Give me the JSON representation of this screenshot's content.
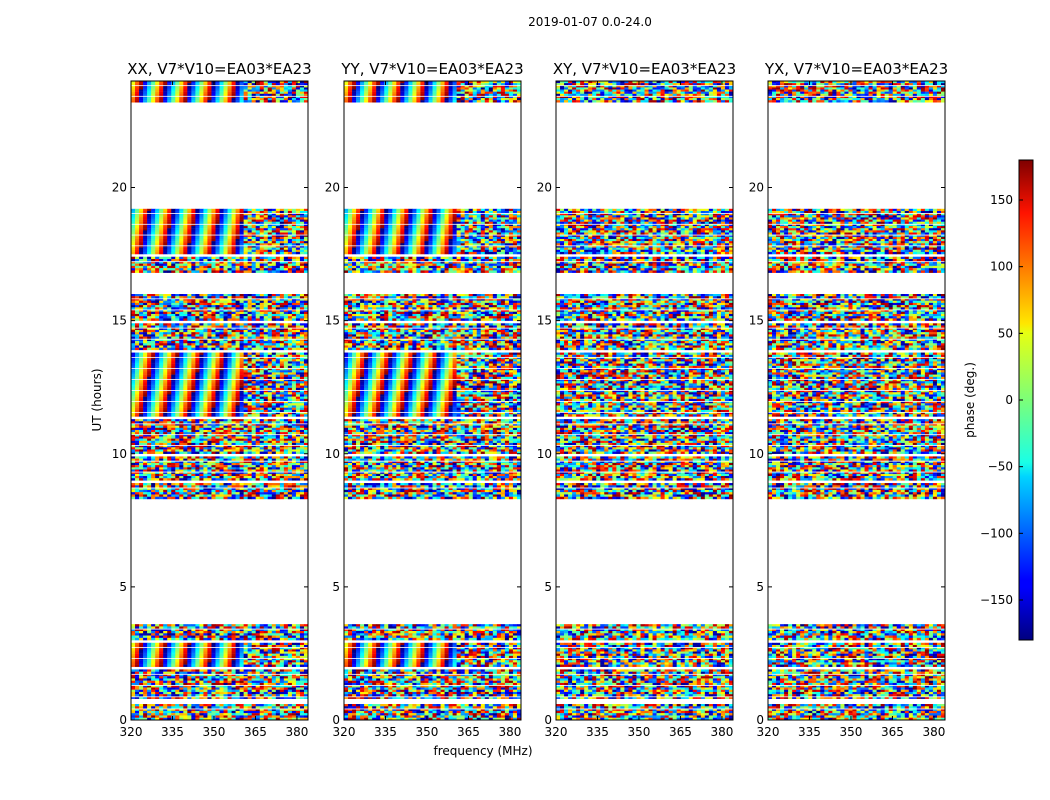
{
  "chart_data": {
    "type": "heatmap",
    "suptitle": "2019-01-07 0.0-24.0",
    "xlabel": "frequency (MHz)",
    "ylabel": "UT (hours)",
    "xlim": [
      320,
      384
    ],
    "ylim": [
      0,
      24
    ],
    "xticks": [
      "320",
      "335",
      "350",
      "365",
      "380"
    ],
    "xtick_values": [
      320,
      335,
      350,
      365,
      380
    ],
    "yticks": [
      "0",
      "5",
      "10",
      "15",
      "20"
    ],
    "ytick_values": [
      0,
      5,
      10,
      15,
      20
    ],
    "colorbar": {
      "label": "phase (deg.)",
      "range": [
        -180,
        180
      ],
      "tick_labels": [
        "150",
        "100",
        "50",
        "0",
        "−50",
        "−100",
        "−150"
      ],
      "tick_values": [
        150,
        100,
        50,
        0,
        -50,
        -100,
        -150
      ],
      "colormap": "jet"
    },
    "panels": [
      {
        "title": "XX, V7*V10=EA03*EA23",
        "pol": "XX"
      },
      {
        "title": "YY, V7*V10=EA03*EA23",
        "pol": "YY"
      },
      {
        "title": "XY, V7*V10=EA03*EA23",
        "pol": "XY"
      },
      {
        "title": "YX, V7*V10=EA03*EA23",
        "pol": "YX"
      }
    ],
    "data_blocks_ut_hours": [
      [
        0.0,
        0.6
      ],
      [
        0.8,
        1.9
      ],
      [
        2.0,
        2.9
      ],
      [
        3.0,
        3.6
      ],
      [
        8.3,
        8.9
      ],
      [
        9.0,
        9.9
      ],
      [
        10.0,
        11.3
      ],
      [
        11.4,
        13.8
      ],
      [
        13.9,
        14.9
      ],
      [
        15.0,
        16.0
      ],
      [
        16.8,
        17.4
      ],
      [
        17.5,
        19.2
      ],
      [
        23.2,
        24.0
      ]
    ]
  }
}
